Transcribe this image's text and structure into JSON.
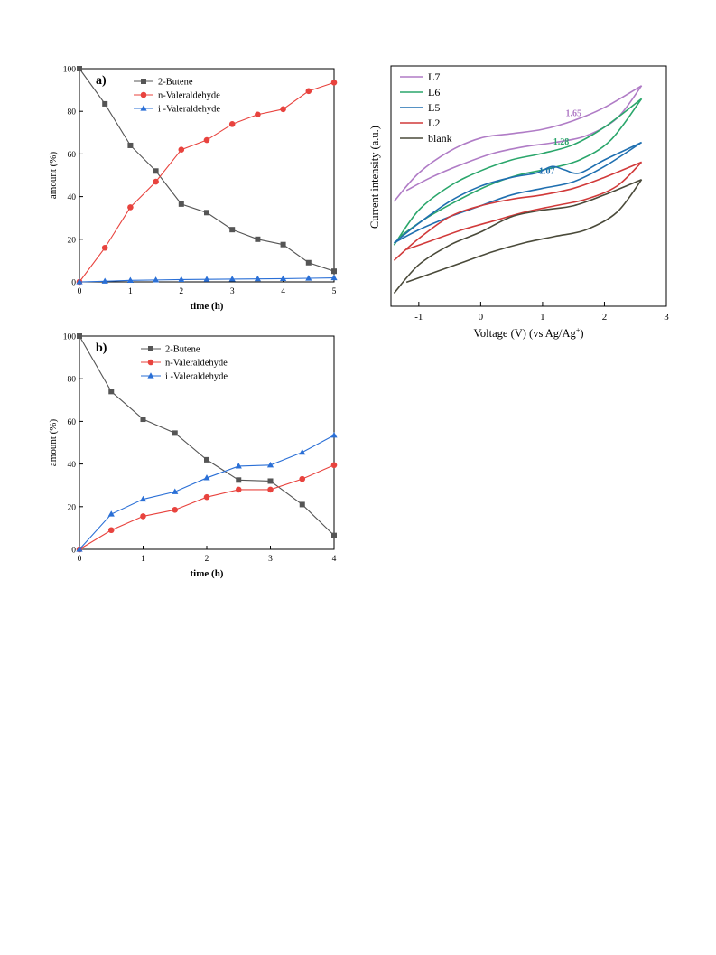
{
  "chart_data": [
    {
      "type": "line",
      "panel_label": "a)",
      "xlabel": "time (h)",
      "ylabel": "amount (%)",
      "xlim": [
        0,
        5
      ],
      "ylim": [
        0,
        100
      ],
      "xticks": [
        0,
        1,
        2,
        3,
        4,
        5
      ],
      "yticks": [
        0,
        20,
        40,
        60,
        80,
        100
      ],
      "legend_position": "top-left",
      "grid": false,
      "x": [
        0,
        0.5,
        1,
        1.5,
        2,
        2.5,
        3,
        3.5,
        4,
        4.5,
        5
      ],
      "series": [
        {
          "name": "2-Butene",
          "color": "#555555",
          "marker": "square",
          "values": [
            100,
            83.5,
            64,
            52,
            36.5,
            32.5,
            24.5,
            20,
            17.5,
            9,
            5
          ]
        },
        {
          "name": "n-Valeraldehyde",
          "color": "#e8433e",
          "marker": "circle",
          "values": [
            0,
            16,
            35,
            47,
            62,
            66.5,
            74,
            78.5,
            81,
            89.5,
            93.5
          ]
        },
        {
          "name": "i -Valeraldehyde",
          "color": "#2a6fd6",
          "marker": "triangle",
          "values": [
            0,
            0.3,
            0.7,
            0.9,
            1.1,
            1.2,
            1.3,
            1.4,
            1.5,
            1.7,
            1.9
          ]
        }
      ]
    },
    {
      "type": "line",
      "panel_label": "b)",
      "xlabel": "time (h)",
      "ylabel": "amount (%)",
      "xlim": [
        0,
        4
      ],
      "ylim": [
        0,
        100
      ],
      "xticks": [
        0,
        1,
        2,
        3,
        4
      ],
      "yticks": [
        0,
        20,
        40,
        60,
        80,
        100
      ],
      "legend_position": "top-center",
      "grid": false,
      "x": [
        0,
        0.5,
        1,
        1.5,
        2,
        2.5,
        3,
        3.5,
        4
      ],
      "series": [
        {
          "name": "2-Butene",
          "color": "#555555",
          "marker": "square",
          "values": [
            100,
            74,
            61,
            54.5,
            42,
            32.5,
            32,
            21,
            6.5
          ]
        },
        {
          "name": "n-Valeraldehyde",
          "color": "#e8433e",
          "marker": "circle",
          "values": [
            0,
            9,
            15.5,
            18.5,
            24.5,
            28,
            28,
            33,
            39.5
          ]
        },
        {
          "name": "i -Valeraldehyde",
          "color": "#2a6fd6",
          "marker": "triangle",
          "values": [
            0,
            16.5,
            23.5,
            27,
            33.5,
            39,
            39.5,
            45.5,
            53.5
          ]
        }
      ]
    },
    {
      "type": "line",
      "xlabel": "Voltage (V) (vs Ag/Ag",
      "xlabel_sup": "+",
      "xlabel_end": ")",
      "ylabel": "Current intensity (a.u.)",
      "xlim": [
        -1.45,
        3
      ],
      "ylim": [
        0,
        10
      ],
      "xticks": [
        -1,
        0,
        1,
        2,
        3
      ],
      "xtick_labels": [
        "-1",
        "0",
        "1",
        "2",
        "3"
      ],
      "yticks_labeled": false,
      "legend_position": "top-left",
      "grid": false,
      "annotations": [
        {
          "text": "1.65",
          "x": 1.5,
          "y": 8.2,
          "color": "#b07cc6"
        },
        {
          "text": "1.28",
          "x": 1.3,
          "y": 6.9,
          "color": "#2aa66b"
        },
        {
          "text": "1.07",
          "x": 1.07,
          "y": 5.55,
          "color": "#1f6fb0"
        }
      ],
      "series": [
        {
          "name": "L7",
          "color": "#b07cc6",
          "upper": [
            [
              -1.4,
              4.3
            ],
            [
              -1,
              5.6
            ],
            [
              -0.5,
              6.6
            ],
            [
              0,
              7.2
            ],
            [
              0.5,
              7.4
            ],
            [
              1,
              7.6
            ],
            [
              1.5,
              8.0
            ],
            [
              2,
              8.6
            ],
            [
              2.6,
              9.6
            ]
          ],
          "lower": [
            [
              -1.2,
              4.8
            ],
            [
              -0.8,
              5.4
            ],
            [
              -0.3,
              6.0
            ],
            [
              0.2,
              6.5
            ],
            [
              0.7,
              6.8
            ],
            [
              1.2,
              7.0
            ],
            [
              1.7,
              7.3
            ],
            [
              2.2,
              8.1
            ],
            [
              2.6,
              9.6
            ]
          ]
        },
        {
          "name": "L6",
          "color": "#2aa66b",
          "upper": [
            [
              -1.4,
              2.3
            ],
            [
              -1,
              3.9
            ],
            [
              -0.5,
              5.0
            ],
            [
              0,
              5.7
            ],
            [
              0.5,
              6.2
            ],
            [
              1,
              6.5
            ],
            [
              1.5,
              6.9
            ],
            [
              2,
              7.7
            ],
            [
              2.6,
              9.0
            ]
          ],
          "lower": [
            [
              -1.3,
              2.7
            ],
            [
              -0.9,
              3.5
            ],
            [
              -0.4,
              4.3
            ],
            [
              0.1,
              5.0
            ],
            [
              0.6,
              5.5
            ],
            [
              1.1,
              5.8
            ],
            [
              1.6,
              6.2
            ],
            [
              2.1,
              7.1
            ],
            [
              2.6,
              9.0
            ]
          ]
        },
        {
          "name": "L5",
          "color": "#1f6fb0",
          "upper": [
            [
              -1.4,
              2.4
            ],
            [
              -1,
              3.3
            ],
            [
              -0.5,
              4.3
            ],
            [
              0,
              5.0
            ],
            [
              0.5,
              5.4
            ],
            [
              0.9,
              5.6
            ],
            [
              1.15,
              5.9
            ],
            [
              1.35,
              5.75
            ],
            [
              1.6,
              5.6
            ],
            [
              2,
              6.2
            ],
            [
              2.6,
              7.0
            ]
          ],
          "lower": [
            [
              -1.4,
              2.4
            ],
            [
              -1,
              3.0
            ],
            [
              -0.5,
              3.6
            ],
            [
              0,
              4.1
            ],
            [
              0.5,
              4.6
            ],
            [
              1,
              4.9
            ],
            [
              1.5,
              5.2
            ],
            [
              2,
              5.9
            ],
            [
              2.6,
              7.0
            ]
          ]
        },
        {
          "name": "L2",
          "color": "#d13a3a",
          "upper": [
            [
              -1.4,
              1.6
            ],
            [
              -1,
              2.6
            ],
            [
              -0.5,
              3.6
            ],
            [
              0,
              4.1
            ],
            [
              0.5,
              4.4
            ],
            [
              1,
              4.6
            ],
            [
              1.5,
              4.9
            ],
            [
              2,
              5.4
            ],
            [
              2.6,
              6.1
            ]
          ],
          "lower": [
            [
              -1.2,
              2.1
            ],
            [
              -0.8,
              2.5
            ],
            [
              -0.3,
              3.0
            ],
            [
              0.2,
              3.4
            ],
            [
              0.7,
              3.8
            ],
            [
              1.2,
              4.1
            ],
            [
              1.7,
              4.4
            ],
            [
              2.2,
              5.0
            ],
            [
              2.6,
              6.1
            ]
          ]
        },
        {
          "name": "blank",
          "color": "#4a4a3a",
          "upper": [
            [
              -1.4,
              0.1
            ],
            [
              -1,
              1.4
            ],
            [
              -0.5,
              2.3
            ],
            [
              0,
              2.9
            ],
            [
              0.5,
              3.6
            ],
            [
              1,
              3.9
            ],
            [
              1.5,
              4.1
            ],
            [
              2,
              4.6
            ],
            [
              2.6,
              5.3
            ]
          ],
          "lower": [
            [
              -1.2,
              0.6
            ],
            [
              -0.8,
              1.0
            ],
            [
              -0.3,
              1.5
            ],
            [
              0.2,
              2.0
            ],
            [
              0.7,
              2.4
            ],
            [
              1.2,
              2.7
            ],
            [
              1.7,
              3.0
            ],
            [
              2.2,
              3.8
            ],
            [
              2.6,
              5.3
            ]
          ]
        }
      ]
    }
  ]
}
